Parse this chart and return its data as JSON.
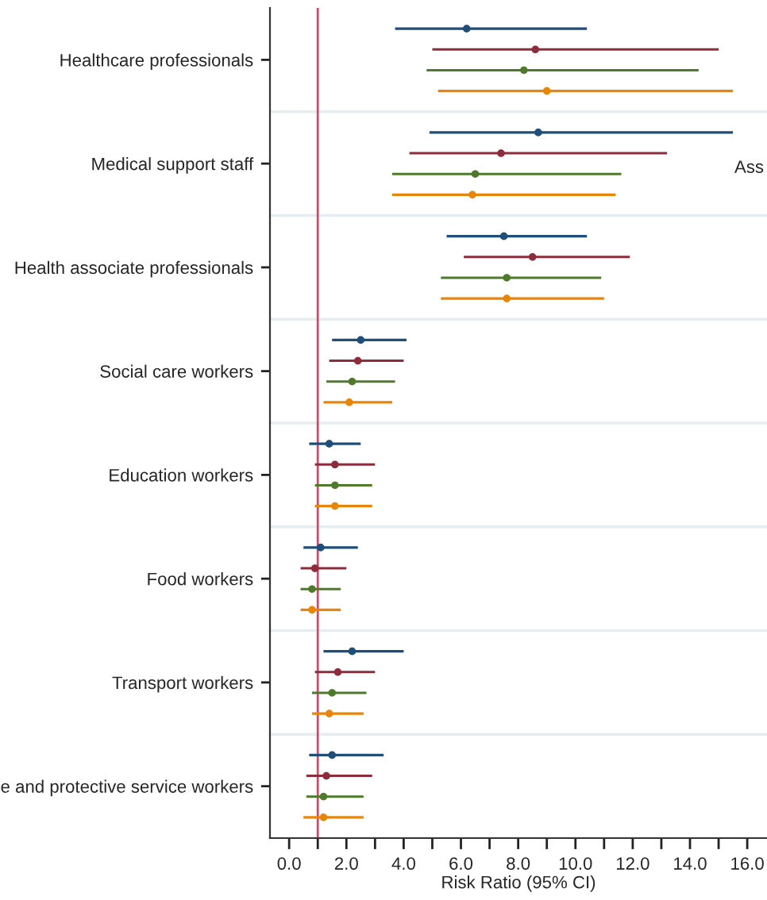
{
  "chart_data": {
    "type": "scatter",
    "orientation": "horizontal",
    "xlabel": "Risk Ratio (95% CI)",
    "categories": [
      "Healthcare professionals",
      "Medical support staff",
      "Health associate professionals",
      "Social care workers",
      "Education workers",
      "Food workers",
      "Transport workers",
      "e and protective service workers"
    ],
    "series": [
      {
        "color": "#1f4e79",
        "values": [
          6.2,
          8.7,
          7.5,
          2.5,
          1.4,
          1.1,
          2.2,
          1.5
        ],
        "errors": [
          [
            3.7,
            10.4
          ],
          [
            4.9,
            15.5
          ],
          [
            5.5,
            10.4
          ],
          [
            1.5,
            4.1
          ],
          [
            0.7,
            2.5
          ],
          [
            0.5,
            2.4
          ],
          [
            1.2,
            4.0
          ],
          [
            0.7,
            3.3
          ]
        ]
      },
      {
        "color": "#8e2c3c",
        "values": [
          8.6,
          7.4,
          8.5,
          2.4,
          1.6,
          0.9,
          1.7,
          1.3
        ],
        "errors": [
          [
            5.0,
            15.0
          ],
          [
            4.2,
            13.2
          ],
          [
            6.1,
            11.9
          ],
          [
            1.4,
            4.0
          ],
          [
            0.9,
            3.0
          ],
          [
            0.4,
            2.0
          ],
          [
            0.9,
            3.0
          ],
          [
            0.6,
            2.9
          ]
        ]
      },
      {
        "color": "#4f7a2c",
        "values": [
          8.2,
          6.5,
          7.6,
          2.2,
          1.6,
          0.8,
          1.5,
          1.2
        ],
        "errors": [
          [
            4.8,
            14.3
          ],
          [
            3.6,
            11.6
          ],
          [
            5.3,
            10.9
          ],
          [
            1.3,
            3.7
          ],
          [
            0.9,
            2.9
          ],
          [
            0.4,
            1.8
          ],
          [
            0.8,
            2.7
          ],
          [
            0.6,
            2.6
          ]
        ]
      },
      {
        "color": "#e8860c",
        "values": [
          9.0,
          6.4,
          7.6,
          2.1,
          1.6,
          0.8,
          1.4,
          1.2
        ],
        "errors": [
          [
            5.2,
            15.5
          ],
          [
            3.6,
            11.4
          ],
          [
            5.3,
            11.0
          ],
          [
            1.2,
            3.6
          ],
          [
            0.9,
            2.9
          ],
          [
            0.4,
            1.8
          ],
          [
            0.8,
            2.6
          ],
          [
            0.5,
            2.6
          ]
        ]
      }
    ],
    "marker": "circle",
    "xlim": [
      -0.67,
      16.69
    ],
    "xticks": [
      {
        "value": 0,
        "label": "0.0"
      },
      {
        "value": 1,
        "label": null
      },
      {
        "value": 2,
        "label": "2.0"
      },
      {
        "value": 3,
        "label": null
      },
      {
        "value": 4,
        "label": "4.0"
      },
      {
        "value": 5,
        "label": null
      },
      {
        "value": 6,
        "label": "6.0"
      },
      {
        "value": 7,
        "label": null
      },
      {
        "value": 8,
        "label": "8.0"
      },
      {
        "value": 9,
        "label": null
      },
      {
        "value": 10,
        "label": "10.0"
      },
      {
        "value": 11,
        "label": null
      },
      {
        "value": 12,
        "label": "12.0"
      },
      {
        "value": 13,
        "label": null
      },
      {
        "value": 14,
        "label": "14.0"
      },
      {
        "value": 15,
        "label": null
      },
      {
        "value": 16,
        "label": "16.0"
      }
    ],
    "ref_lines": [
      {
        "axis": "x",
        "value": 1,
        "color": "#d4486e"
      }
    ],
    "annotations": [
      "Ass"
    ],
    "grid": false
  }
}
